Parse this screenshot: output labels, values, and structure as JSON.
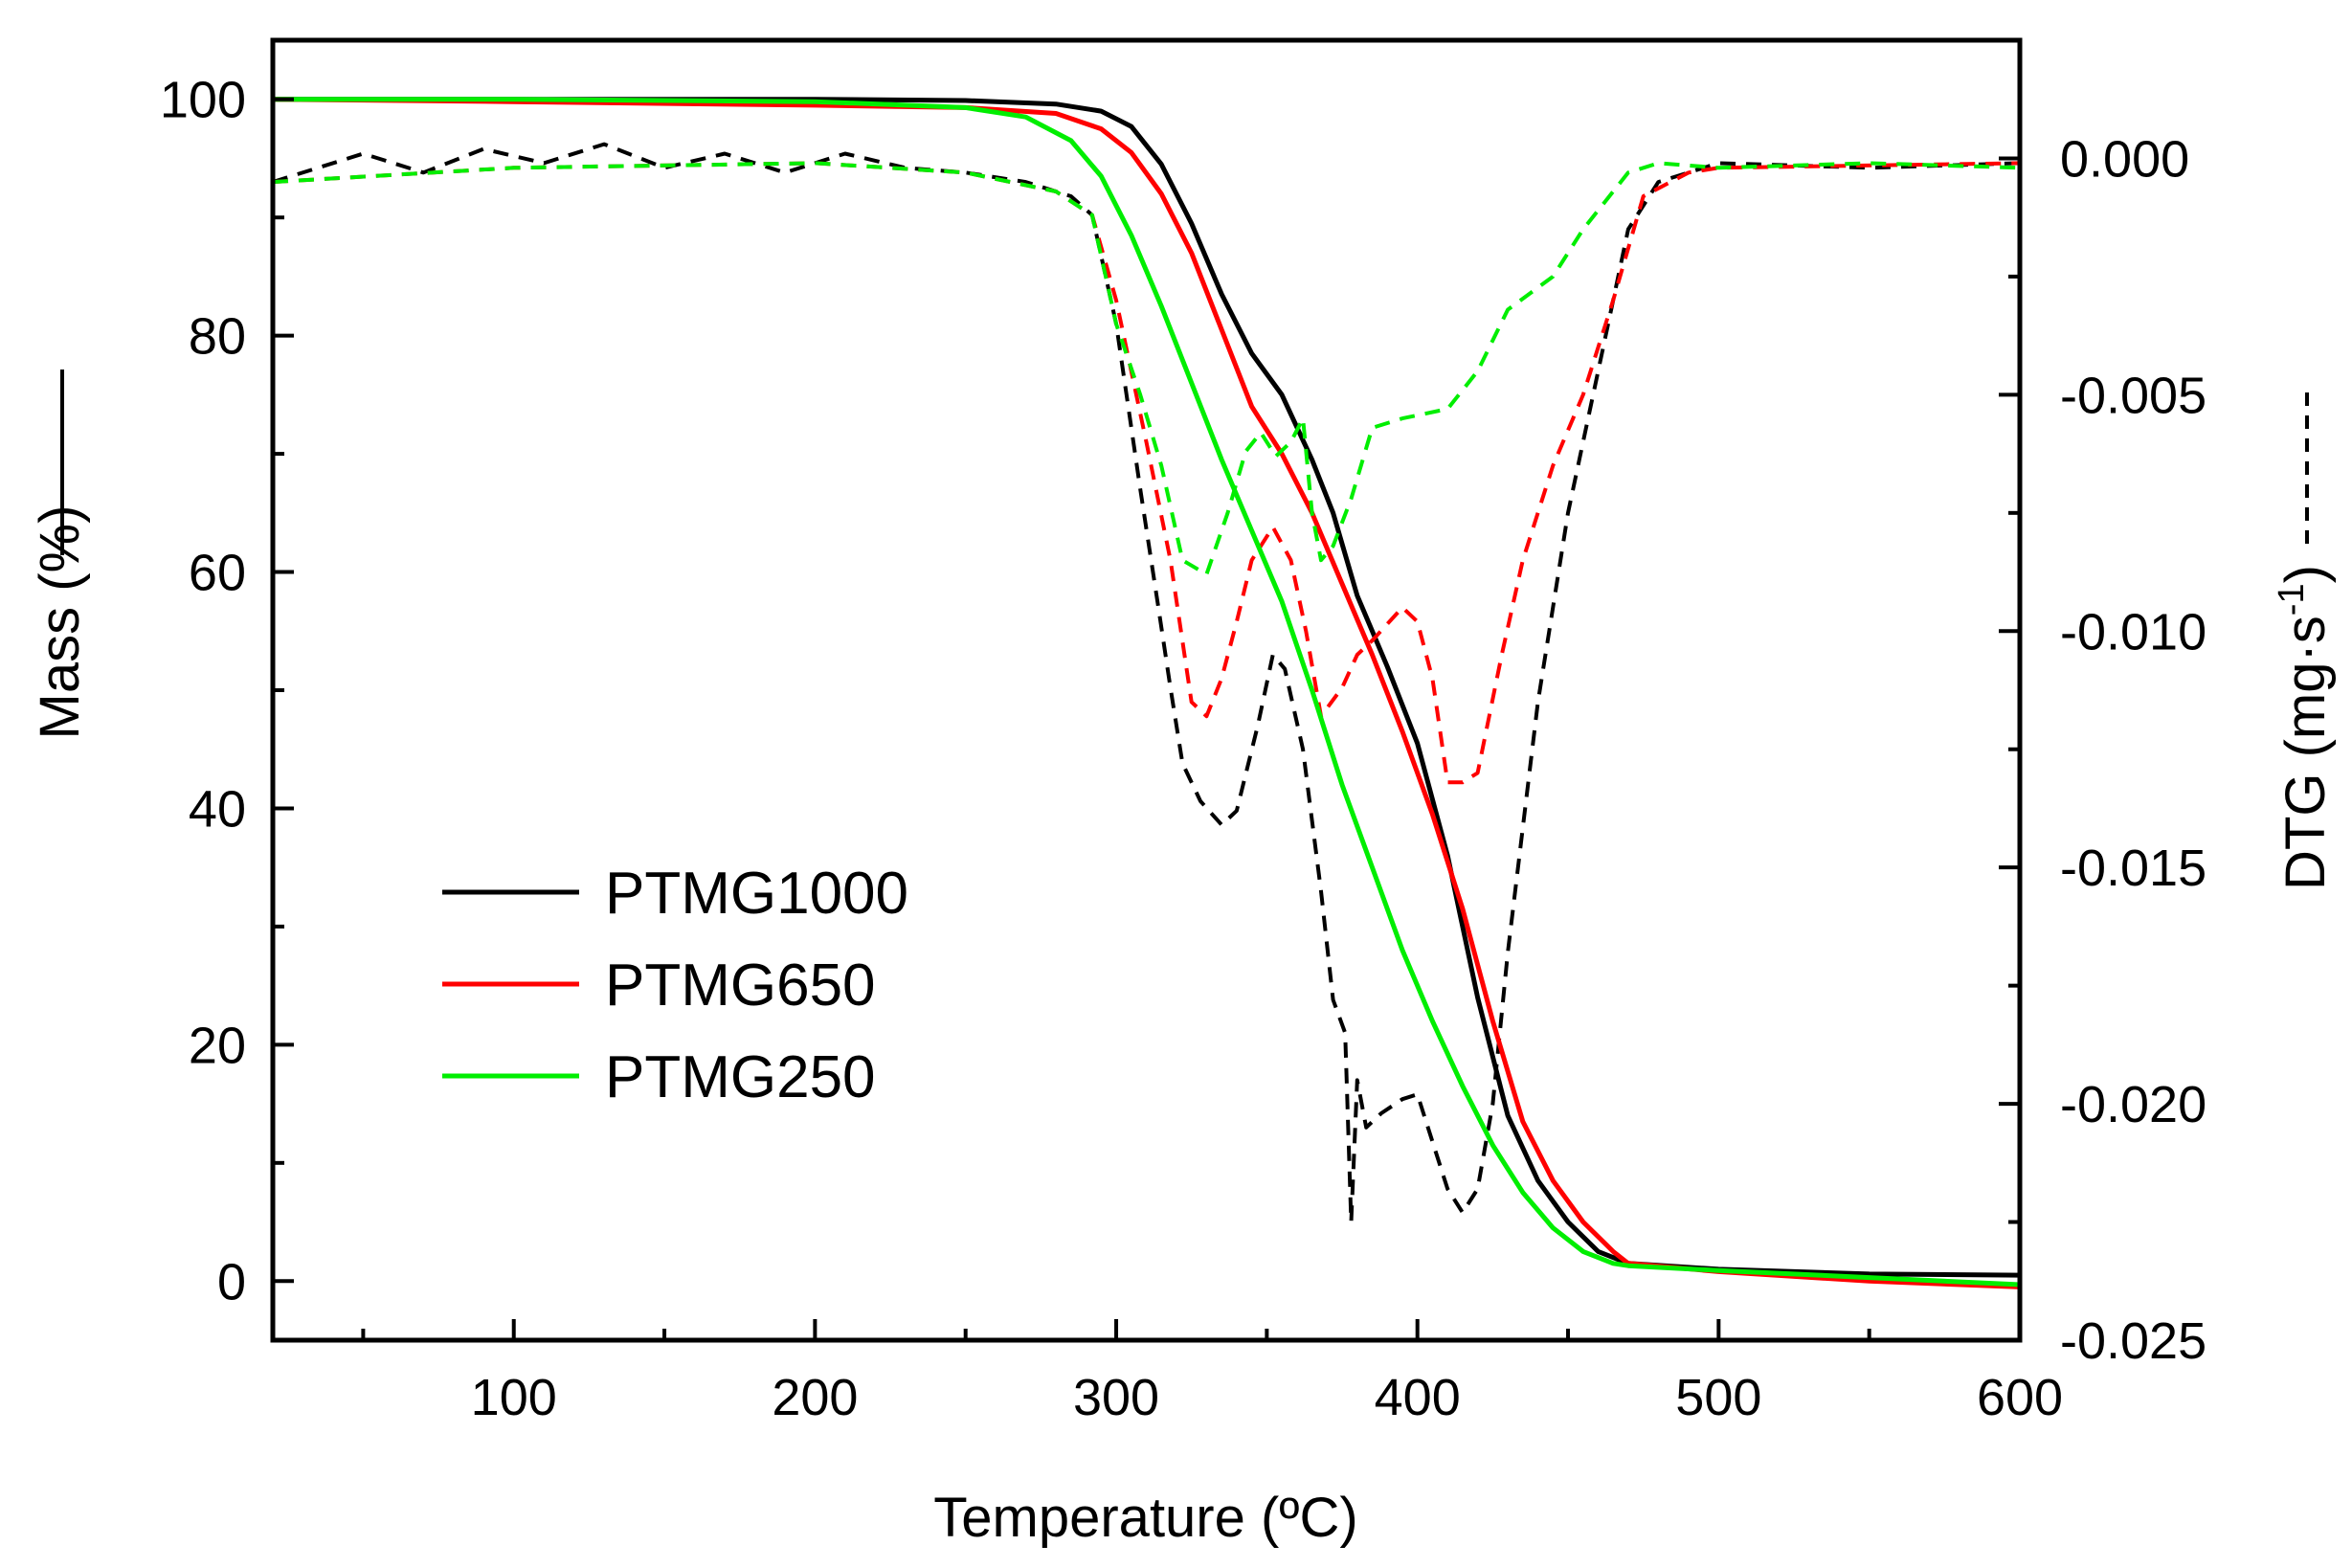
{
  "chart_data": {
    "type": "line",
    "title": "",
    "xlabel": "Temperature (ºC)",
    "ylabel_left": "Mass (%)",
    "ylabel_right_main": "DTG (mg·s",
    "ylabel_right_sup": "-1",
    "ylabel_right_end": ")",
    "xlim": [
      20,
      600
    ],
    "ylim_left": [
      -5,
      105
    ],
    "ylim_right": [
      -0.025,
      0.0025
    ],
    "x_ticks": [
      100,
      200,
      300,
      400,
      500,
      600
    ],
    "x_tick_labels": [
      "100",
      "200",
      "300",
      "400",
      "500",
      "600"
    ],
    "y_left_ticks": [
      0,
      20,
      40,
      60,
      80,
      100
    ],
    "y_left_tick_labels": [
      "0",
      "20",
      "40",
      "60",
      "80",
      "100"
    ],
    "y_right_ticks": [
      0,
      -0.005,
      -0.01,
      -0.015,
      -0.02,
      -0.025
    ],
    "y_right_tick_labels": [
      "0.000",
      "-0.005",
      "-0.010",
      "-0.015",
      "-0.020",
      "-0.025"
    ],
    "legend_position": "bottom-left",
    "legend_note": "solid = Mass, dashed = DTG",
    "series": [
      {
        "name": "PTMG1000",
        "color": "#000000",
        "mass": {
          "x": [
            20,
            100,
            200,
            250,
            280,
            295,
            305,
            315,
            325,
            335,
            345,
            355,
            365,
            372,
            380,
            390,
            400,
            410,
            420,
            430,
            440,
            450,
            460,
            470,
            500,
            550,
            600
          ],
          "y": [
            100,
            100,
            100,
            99.9,
            99.6,
            99,
            97.7,
            94.5,
            89.5,
            83.5,
            78.5,
            75,
            69.5,
            65,
            58,
            52,
            45.5,
            36,
            24,
            14,
            8.5,
            5,
            2.5,
            1.5,
            1,
            0.6,
            0.5
          ]
        },
        "dtg": {
          "x": [
            20,
            35,
            50,
            70,
            90,
            110,
            130,
            150,
            170,
            190,
            210,
            230,
            250,
            270,
            285,
            292,
            300,
            308,
            314,
            318,
            322,
            328,
            335,
            340,
            347,
            352,
            356,
            362,
            368,
            372,
            376,
            378,
            380,
            383,
            388,
            395,
            400,
            405,
            410,
            415,
            420,
            425,
            430,
            440,
            450,
            460,
            470,
            480,
            500,
            550,
            600
          ],
          "y": [
            -0.0005,
            -0.0002,
            0.0001,
            -0.0003,
            0.0002,
            -0.0001,
            0.0003,
            -0.0002,
            0.0001,
            -0.0003,
            0.0001,
            -0.0002,
            -0.0003,
            -0.0005,
            -0.0008,
            -0.0012,
            -0.0035,
            -0.007,
            -0.0095,
            -0.0112,
            -0.0128,
            -0.0136,
            -0.0141,
            -0.0138,
            -0.012,
            -0.0105,
            -0.0108,
            -0.0125,
            -0.0155,
            -0.0178,
            -0.0185,
            -0.0225,
            -0.0195,
            -0.0205,
            -0.0202,
            -0.0199,
            -0.0198,
            -0.0208,
            -0.0218,
            -0.0223,
            -0.0218,
            -0.02,
            -0.0168,
            -0.0115,
            -0.0075,
            -0.0045,
            -0.0015,
            -0.0005,
            -0.0001,
            -0.0002,
            -0.0001
          ]
        }
      },
      {
        "name": "PTMG650",
        "color": "#ff0000",
        "mass": {
          "x": [
            20,
            100,
            200,
            250,
            280,
            295,
            305,
            315,
            325,
            335,
            345,
            355,
            365,
            375,
            385,
            395,
            405,
            415,
            425,
            435,
            445,
            455,
            465,
            470,
            500,
            550,
            600
          ],
          "y": [
            100,
            99.8,
            99.5,
            99.3,
            98.8,
            97.5,
            95.5,
            92,
            87,
            80.5,
            74,
            70,
            65,
            59,
            53,
            46.5,
            39.5,
            31.5,
            22,
            13.5,
            8.5,
            5,
            2.5,
            1.5,
            0.8,
            0,
            -0.5
          ]
        },
        "dtg": {
          "x": [
            20,
            100,
            200,
            250,
            280,
            292,
            300,
            310,
            318,
            325,
            330,
            335,
            340,
            345,
            352,
            358,
            363,
            368,
            375,
            380,
            385,
            395,
            400,
            405,
            410,
            415,
            420,
            428,
            435,
            445,
            455,
            465,
            475,
            490,
            500,
            600
          ],
          "y": [
            -0.0005,
            -0.0002,
            -0.0001,
            -0.0003,
            -0.0007,
            -0.0012,
            -0.003,
            -0.006,
            -0.0085,
            -0.0115,
            -0.0118,
            -0.011,
            -0.0098,
            -0.0085,
            -0.0078,
            -0.0085,
            -0.01,
            -0.0118,
            -0.0112,
            -0.0105,
            -0.0102,
            -0.0095,
            -0.0098,
            -0.011,
            -0.0132,
            -0.0132,
            -0.013,
            -0.0105,
            -0.0085,
            -0.0065,
            -0.005,
            -0.003,
            -0.0008,
            -0.0003,
            -0.0002,
            -0.0001
          ]
        }
      },
      {
        "name": "PTMG250",
        "color": "#00ee00",
        "mass": {
          "x": [
            20,
            100,
            200,
            250,
            270,
            285,
            295,
            305,
            315,
            325,
            335,
            345,
            355,
            365,
            375,
            385,
            395,
            405,
            415,
            425,
            435,
            445,
            455,
            465,
            470,
            500,
            550,
            600
          ],
          "y": [
            100,
            100,
            99.8,
            99.3,
            98.5,
            96.5,
            93.5,
            88.5,
            82.5,
            76,
            69.5,
            63.5,
            57.5,
            50,
            42,
            35,
            28,
            22,
            16.5,
            11.5,
            7.5,
            4.5,
            2.5,
            1.5,
            1.3,
            0.9,
            0.3,
            -0.3
          ]
        },
        "dtg": {
          "x": [
            20,
            100,
            200,
            250,
            280,
            292,
            300,
            308,
            315,
            322,
            330,
            337,
            343,
            348,
            353,
            358,
            362,
            365,
            368,
            372,
            378,
            385,
            395,
            410,
            420,
            430,
            445,
            455,
            470,
            480,
            500,
            550,
            600
          ],
          "y": [
            -0.0005,
            -0.0002,
            -0.0001,
            -0.0003,
            -0.0007,
            -0.0012,
            -0.0035,
            -0.005,
            -0.0065,
            -0.0085,
            -0.0088,
            -0.0075,
            -0.0062,
            -0.0058,
            -0.0063,
            -0.006,
            -0.0055,
            -0.0075,
            -0.0085,
            -0.0082,
            -0.0072,
            -0.0057,
            -0.0055,
            -0.0053,
            -0.0045,
            -0.0032,
            -0.0025,
            -0.0015,
            -0.0003,
            -0.0001,
            -0.0002,
            -0.0001,
            -0.0002
          ]
        }
      }
    ]
  }
}
